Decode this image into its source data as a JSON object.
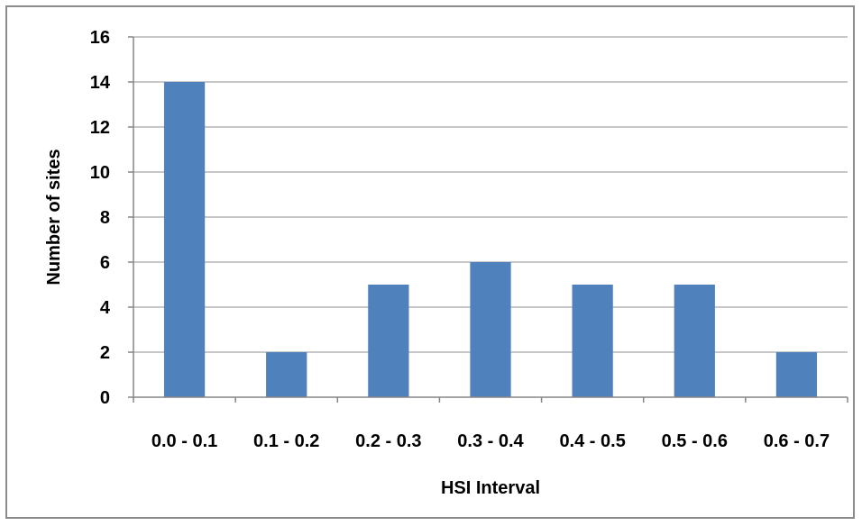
{
  "chart_data": {
    "type": "bar",
    "title": "",
    "xlabel": "HSI Interval",
    "ylabel": "Number of sites",
    "categories": [
      "0.0 - 0.1",
      "0.1 - 0.2",
      "0.2 - 0.3",
      "0.3 - 0.4",
      "0.4 - 0.5",
      "0.5 - 0.6",
      "0.6 - 0.7"
    ],
    "values": [
      14,
      2,
      5,
      6,
      5,
      5,
      2
    ],
    "ylim": [
      0,
      16
    ],
    "yticks": [
      0,
      2,
      4,
      6,
      8,
      10,
      12,
      14,
      16
    ],
    "grid": "horizontal",
    "legend": "none",
    "bar_color": "#4f81bd",
    "grid_color": "#a6a6a6"
  }
}
